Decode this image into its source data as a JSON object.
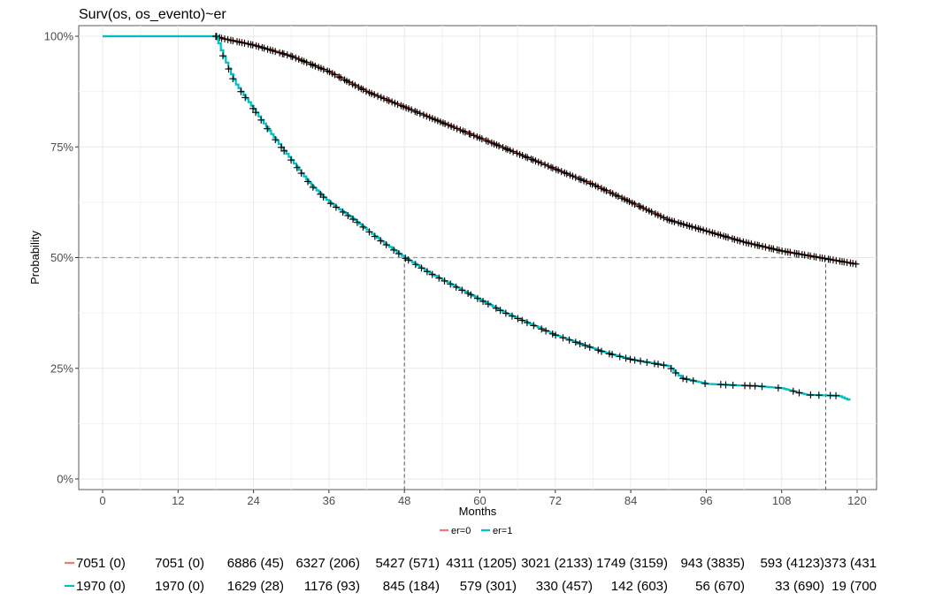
{
  "chart_data": {
    "type": "line",
    "title": "Surv(os, os_evento)~er",
    "xlabel": "Months",
    "ylabel": "Probability",
    "xlim": [
      0,
      120
    ],
    "ylim": [
      0,
      1
    ],
    "x_ticks": [
      0,
      12,
      24,
      36,
      48,
      60,
      72,
      84,
      96,
      108,
      120
    ],
    "y_ticks": [
      {
        "value": 0,
        "label": "0%"
      },
      {
        "value": 0.25,
        "label": "25%"
      },
      {
        "value": 0.5,
        "label": "50%"
      },
      {
        "value": 0.75,
        "label": "75%"
      },
      {
        "value": 1,
        "label": "100%"
      }
    ],
    "grid": true,
    "legend_position": "bottom",
    "median_line": {
      "y": 0.5,
      "medians": [
        48,
        115
      ]
    },
    "series": [
      {
        "name": "er=0",
        "color": "#F8766D",
        "censor_color": "#000000",
        "points": [
          [
            0,
            1.0
          ],
          [
            18,
            1.0
          ],
          [
            19,
            0.995
          ],
          [
            24,
            0.98
          ],
          [
            30,
            0.955
          ],
          [
            36,
            0.92
          ],
          [
            42,
            0.875
          ],
          [
            48,
            0.84
          ],
          [
            54,
            0.805
          ],
          [
            60,
            0.77
          ],
          [
            66,
            0.735
          ],
          [
            72,
            0.7
          ],
          [
            78,
            0.665
          ],
          [
            84,
            0.625
          ],
          [
            90,
            0.585
          ],
          [
            96,
            0.56
          ],
          [
            102,
            0.535
          ],
          [
            108,
            0.515
          ],
          [
            114,
            0.5
          ],
          [
            120,
            0.485
          ]
        ],
        "censor_range": [
          18,
          120
        ]
      },
      {
        "name": "er=1",
        "color": "#00BFC4",
        "censor_color": "#000000",
        "points": [
          [
            0,
            1.0
          ],
          [
            18,
            1.0
          ],
          [
            19,
            0.96
          ],
          [
            21,
            0.895
          ],
          [
            24,
            0.835
          ],
          [
            27,
            0.775
          ],
          [
            30,
            0.72
          ],
          [
            33,
            0.665
          ],
          [
            36,
            0.625
          ],
          [
            40,
            0.585
          ],
          [
            44,
            0.54
          ],
          [
            48,
            0.5
          ],
          [
            52,
            0.465
          ],
          [
            56,
            0.435
          ],
          [
            60,
            0.405
          ],
          [
            64,
            0.375
          ],
          [
            68,
            0.35
          ],
          [
            72,
            0.325
          ],
          [
            76,
            0.305
          ],
          [
            80,
            0.285
          ],
          [
            84,
            0.27
          ],
          [
            88,
            0.26
          ],
          [
            90,
            0.255
          ],
          [
            92,
            0.228
          ],
          [
            96,
            0.215
          ],
          [
            100,
            0.212
          ],
          [
            104,
            0.21
          ],
          [
            108,
            0.205
          ],
          [
            112,
            0.19
          ],
          [
            117,
            0.188
          ],
          [
            119,
            0.176
          ]
        ],
        "censor_range": [
          18,
          118
        ]
      }
    ],
    "risk_table": {
      "rows": [
        {
          "name": "er=0",
          "color": "#F8766D",
          "values": [
            "7051 (0)",
            "7051 (0)",
            "6886 (45)",
            "6327 (206)",
            "5427 (571)",
            "4311 (1205)",
            "3021 (2133)",
            "1749 (3159)",
            "943 (3835)",
            "593 (4123)",
            "373 (431"
          ]
        },
        {
          "name": "er=1",
          "color": "#00BFC4",
          "values": [
            "1970 (0)",
            "1970 (0)",
            "1629 (28)",
            "1176 (93)",
            "845 (184)",
            "579 (301)",
            "330 (457)",
            "142 (603)",
            "56 (670)",
            "33 (690)",
            "19 (700"
          ]
        }
      ]
    }
  }
}
